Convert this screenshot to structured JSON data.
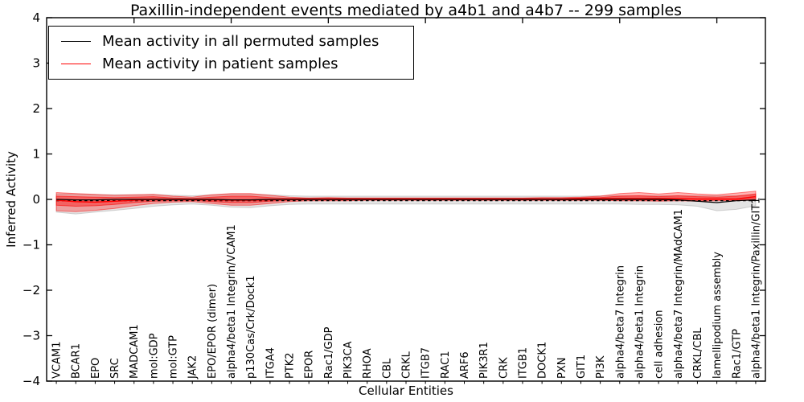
{
  "chart_data": {
    "type": "line",
    "title": "Paxillin-independent events mediated by a4b1 and a4b7 -- 299 samples",
    "xlabel": "Cellular Entities",
    "ylabel": "Inferred Activity",
    "ylim": [
      -4,
      4
    ],
    "yticks": [
      4,
      3,
      2,
      1,
      0,
      -1,
      -2,
      -3,
      -4
    ],
    "ytick_labels": [
      "4",
      "3",
      "2",
      "1",
      "0",
      "−1",
      "−2",
      "−3",
      "−4"
    ],
    "grid": false,
    "legend_position": "upper left",
    "categories": [
      "VCAM1",
      "BCAR1",
      "EPO",
      "SRC",
      "MADCAM1",
      "mol:GDP",
      "mol:GTP",
      "JAK2",
      "EPO/EPOR (dimer)",
      "alpha4/beta1 Integrin/VCAM1",
      "p130Cas/Crk/Dock1",
      "ITGA4",
      "PTK2",
      "EPOR",
      "Rac1/GDP",
      "PIK3CA",
      "RHOA",
      "CBL",
      "CRKL",
      "ITGB7",
      "RAC1",
      "ARF6",
      "PIK3R1",
      "CRK",
      "ITGB1",
      "DOCK1",
      "PXN",
      "GIT1",
      "PI3K",
      "alpha4/beta7 Integrin",
      "alpha4/beta1 Integrin",
      "cell adhesion",
      "alpha4/beta7 Integrin/MAdCAM1",
      "CRKL/CBL",
      "lamellipodium assembly",
      "Rac1/GTP",
      "alpha4/beta1 Integrin/Paxillin/GIT1"
    ],
    "series": [
      {
        "name": "Mean activity in all permuted samples",
        "color": "#000000",
        "style": "solid",
        "values": [
          0,
          -0.01,
          -0.01,
          0,
          0,
          0,
          0,
          0,
          0,
          -0.01,
          -0.01,
          0,
          0,
          0,
          0,
          0,
          0,
          0,
          0,
          0,
          0,
          0,
          0,
          0,
          0,
          0,
          0,
          0,
          0,
          0,
          0,
          0,
          -0.01,
          -0.04,
          -0.07,
          -0.03,
          -0.01
        ]
      },
      {
        "name": "Mean activity in patient samples",
        "color": "#ff0000",
        "style": "solid",
        "values": [
          -0.02,
          -0.05,
          -0.06,
          -0.04,
          -0.02,
          0,
          0,
          0,
          -0.01,
          -0.02,
          -0.02,
          -0.01,
          0.01,
          0.01,
          0.01,
          0.01,
          0.01,
          0.01,
          0.01,
          0.01,
          0.01,
          0.01,
          0.01,
          0.01,
          0.01,
          0.01,
          0.01,
          0.02,
          0.02,
          0.02,
          0.02,
          0.02,
          0.02,
          0.01,
          0.01,
          0.01,
          0.06
        ]
      }
    ],
    "zero_line": {
      "value": 0,
      "color": "#000000",
      "style": "dashed"
    },
    "bands": [
      {
        "name": "permuted-samples-range",
        "color": "#aaaaaa",
        "fill_opacity": 0.32,
        "upper": [
          0.12,
          0.12,
          0.11,
          0.1,
          0.1,
          0.11,
          0.09,
          0.08,
          0.1,
          0.12,
          0.12,
          0.1,
          0.08,
          0.07,
          0.07,
          0.07,
          0.07,
          0.07,
          0.07,
          0.07,
          0.07,
          0.07,
          0.07,
          0.07,
          0.07,
          0.07,
          0.07,
          0.07,
          0.08,
          0.08,
          0.08,
          0.08,
          0.08,
          0.08,
          0.08,
          0.08,
          0.1
        ],
        "lower": [
          -0.28,
          -0.32,
          -0.28,
          -0.24,
          -0.2,
          -0.15,
          -0.12,
          -0.1,
          -0.13,
          -0.17,
          -0.18,
          -0.14,
          -0.11,
          -0.1,
          -0.1,
          -0.1,
          -0.1,
          -0.1,
          -0.1,
          -0.1,
          -0.1,
          -0.1,
          -0.1,
          -0.1,
          -0.1,
          -0.1,
          -0.1,
          -0.1,
          -0.1,
          -0.1,
          -0.11,
          -0.11,
          -0.12,
          -0.15,
          -0.25,
          -0.22,
          -0.14
        ]
      },
      {
        "name": "patient-samples-range-outer",
        "color": "#ff0000",
        "fill_opacity": 0.3,
        "upper": [
          0.15,
          0.13,
          0.11,
          0.09,
          0.1,
          0.11,
          0.07,
          0.05,
          0.1,
          0.13,
          0.13,
          0.09,
          0.05,
          0.03,
          0.04,
          0.03,
          0.03,
          0.03,
          0.03,
          0.03,
          0.03,
          0.03,
          0.03,
          0.03,
          0.03,
          0.04,
          0.04,
          0.05,
          0.07,
          0.13,
          0.15,
          0.12,
          0.15,
          0.12,
          0.1,
          0.14,
          0.18
        ],
        "lower": [
          -0.25,
          -0.27,
          -0.24,
          -0.2,
          -0.14,
          -0.09,
          -0.06,
          -0.05,
          -0.09,
          -0.13,
          -0.13,
          -0.09,
          -0.05,
          -0.03,
          -0.03,
          -0.03,
          -0.02,
          -0.02,
          -0.02,
          -0.02,
          -0.02,
          -0.02,
          -0.02,
          -0.02,
          -0.02,
          -0.02,
          -0.02,
          -0.02,
          -0.02,
          -0.03,
          -0.03,
          -0.04,
          -0.03,
          -0.04,
          -0.03,
          -0.02,
          0.0
        ]
      },
      {
        "name": "patient-samples-range-inner",
        "color": "#ff0000",
        "fill_opacity": 0.38,
        "upper": [
          0.07,
          0.06,
          0.05,
          0.04,
          0.05,
          0.06,
          0.03,
          0.02,
          0.05,
          0.07,
          0.07,
          0.04,
          0.02,
          0.02,
          0.02,
          0.02,
          0.02,
          0.02,
          0.02,
          0.02,
          0.02,
          0.02,
          0.02,
          0.02,
          0.02,
          0.02,
          0.02,
          0.03,
          0.04,
          0.07,
          0.08,
          0.06,
          0.08,
          0.06,
          0.05,
          0.07,
          0.12
        ],
        "lower": [
          -0.13,
          -0.15,
          -0.14,
          -0.11,
          -0.07,
          -0.04,
          -0.03,
          -0.02,
          -0.05,
          -0.07,
          -0.07,
          -0.04,
          -0.02,
          -0.01,
          -0.01,
          -0.01,
          -0.01,
          -0.01,
          -0.01,
          -0.01,
          -0.01,
          -0.01,
          -0.01,
          -0.01,
          -0.01,
          -0.01,
          -0.01,
          -0.01,
          -0.01,
          -0.01,
          -0.01,
          -0.02,
          -0.01,
          -0.02,
          -0.01,
          -0.01,
          0.02
        ]
      }
    ]
  },
  "legend": {
    "items": [
      {
        "label": "Mean activity in all permuted samples",
        "color": "#000000"
      },
      {
        "label": "Mean activity in patient samples",
        "color": "#ff0000"
      }
    ]
  }
}
